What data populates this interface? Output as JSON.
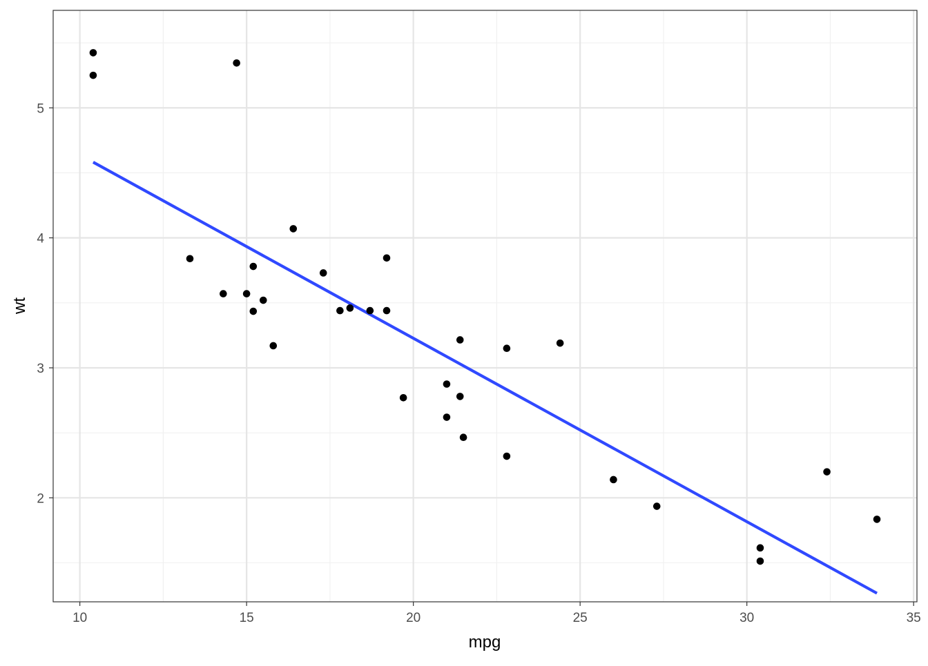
{
  "chart_data": {
    "type": "scatter",
    "title": "",
    "xlabel": "mpg",
    "ylabel": "wt",
    "xlim": [
      9.2,
      35.1
    ],
    "ylim": [
      1.2,
      5.75
    ],
    "x_ticks": [
      10,
      15,
      20,
      25,
      30,
      35
    ],
    "y_ticks": [
      2,
      3,
      4,
      5
    ],
    "x_tick_labels": [
      "10",
      "15",
      "20",
      "25",
      "30",
      "35"
    ],
    "y_tick_labels": [
      "2",
      "3",
      "4",
      "5"
    ],
    "grid": true,
    "legend": "none",
    "colors": {
      "points": "#000000",
      "fit_line": "#3049ff",
      "grid_major": "#e5e5e5",
      "grid_minor": "#f0f0f0",
      "panel_border": "#333333",
      "tick_text": "#4d4d4d"
    },
    "points": [
      {
        "x": 10.4,
        "y": 5.424
      },
      {
        "x": 10.4,
        "y": 5.25
      },
      {
        "x": 14.7,
        "y": 5.345
      },
      {
        "x": 13.3,
        "y": 3.84
      },
      {
        "x": 14.3,
        "y": 3.57
      },
      {
        "x": 15.0,
        "y": 3.57
      },
      {
        "x": 15.2,
        "y": 3.78
      },
      {
        "x": 15.2,
        "y": 3.435
      },
      {
        "x": 15.5,
        "y": 3.52
      },
      {
        "x": 15.8,
        "y": 3.17
      },
      {
        "x": 16.4,
        "y": 4.07
      },
      {
        "x": 17.3,
        "y": 3.73
      },
      {
        "x": 17.8,
        "y": 3.44
      },
      {
        "x": 18.1,
        "y": 3.46
      },
      {
        "x": 18.7,
        "y": 3.44
      },
      {
        "x": 19.2,
        "y": 3.44
      },
      {
        "x": 19.2,
        "y": 3.845
      },
      {
        "x": 19.7,
        "y": 2.77
      },
      {
        "x": 21.0,
        "y": 2.62
      },
      {
        "x": 21.0,
        "y": 2.875
      },
      {
        "x": 21.4,
        "y": 3.215
      },
      {
        "x": 21.4,
        "y": 2.78
      },
      {
        "x": 21.5,
        "y": 2.465
      },
      {
        "x": 22.8,
        "y": 3.15
      },
      {
        "x": 22.8,
        "y": 2.32
      },
      {
        "x": 24.4,
        "y": 3.19
      },
      {
        "x": 26.0,
        "y": 2.14
      },
      {
        "x": 27.3,
        "y": 1.935
      },
      {
        "x": 30.4,
        "y": 1.615
      },
      {
        "x": 30.4,
        "y": 1.513
      },
      {
        "x": 32.4,
        "y": 2.2
      },
      {
        "x": 33.9,
        "y": 1.835
      }
    ],
    "fit_line": {
      "method": "lm",
      "x": [
        10.4,
        33.9
      ],
      "y": [
        4.582,
        1.266
      ]
    }
  }
}
